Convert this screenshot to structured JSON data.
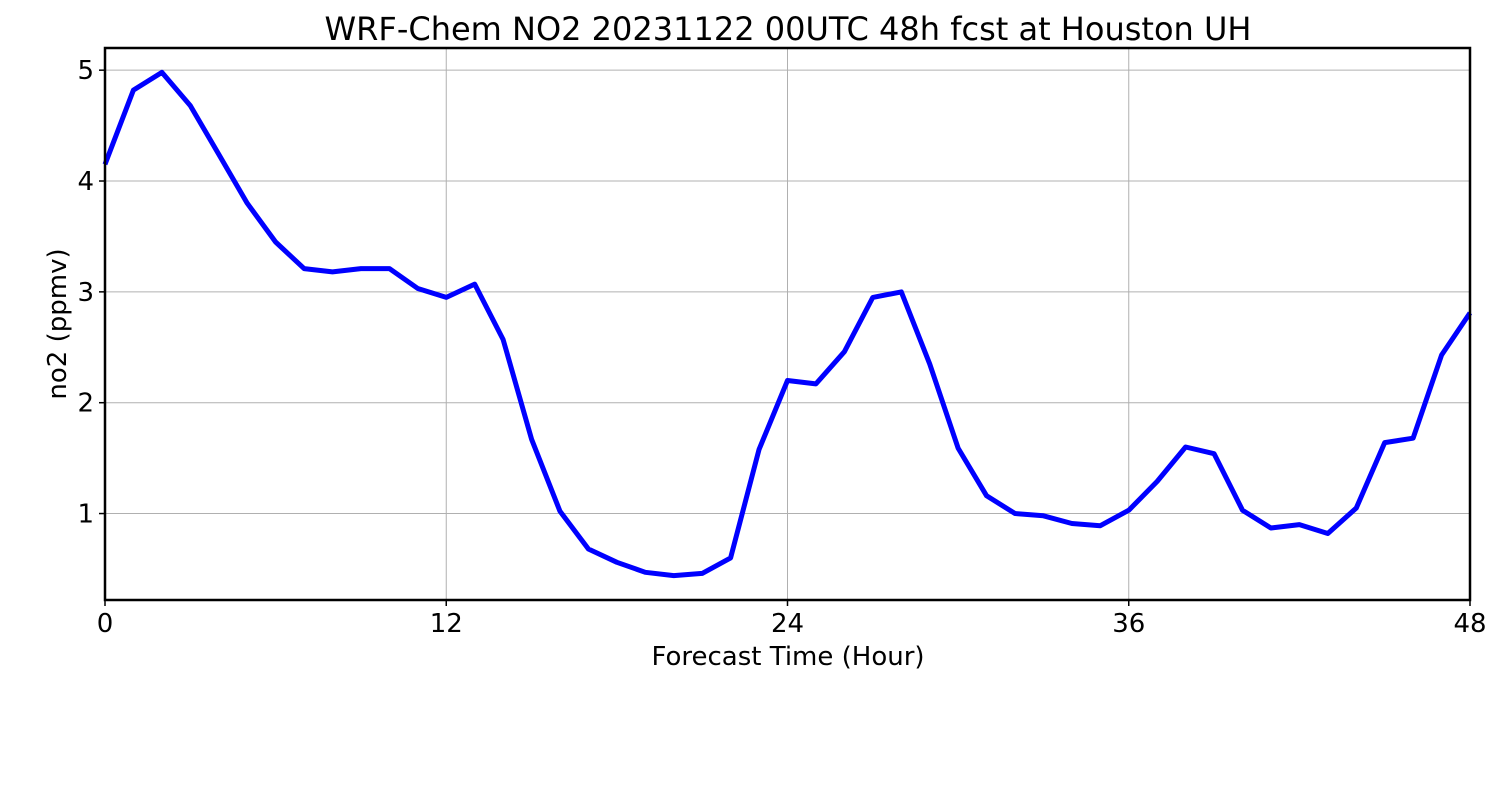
{
  "chart_data": {
    "type": "line",
    "title": "WRF-Chem NO2  20231122 00UTC 48h fcst at Houston UH",
    "xlabel": "Forecast Time (Hour)",
    "ylabel": "no2  (ppmv)",
    "xlim": [
      0,
      48
    ],
    "ylim": [
      0.22,
      5.2
    ],
    "xticks": [
      0,
      12,
      24,
      36,
      48
    ],
    "yticks": [
      1,
      2,
      3,
      4,
      5
    ],
    "grid": true,
    "series": [
      {
        "color": "#0000ff",
        "x": [
          0,
          1,
          2,
          3,
          4,
          5,
          6,
          7,
          8,
          9,
          10,
          11,
          12,
          13,
          14,
          15,
          16,
          17,
          18,
          19,
          20,
          21,
          22,
          23,
          24,
          25,
          26,
          27,
          28,
          29,
          30,
          31,
          32,
          33,
          34,
          35,
          36,
          37,
          38,
          39,
          40,
          41,
          42,
          43,
          44,
          45,
          46,
          47,
          48
        ],
        "values": [
          4.15,
          4.82,
          4.98,
          4.68,
          4.24,
          3.8,
          3.45,
          3.21,
          3.18,
          3.21,
          3.21,
          3.03,
          2.95,
          3.07,
          2.57,
          1.67,
          1.02,
          0.68,
          0.56,
          0.47,
          0.44,
          0.46,
          0.6,
          1.58,
          2.2,
          2.17,
          2.46,
          2.95,
          3.0,
          2.35,
          1.59,
          1.16,
          1.0,
          0.98,
          0.91,
          0.89,
          1.03,
          1.29,
          1.6,
          1.54,
          1.03,
          0.87,
          0.9,
          0.82,
          1.05,
          1.64,
          1.68,
          2.43,
          2.81
        ]
      }
    ]
  }
}
